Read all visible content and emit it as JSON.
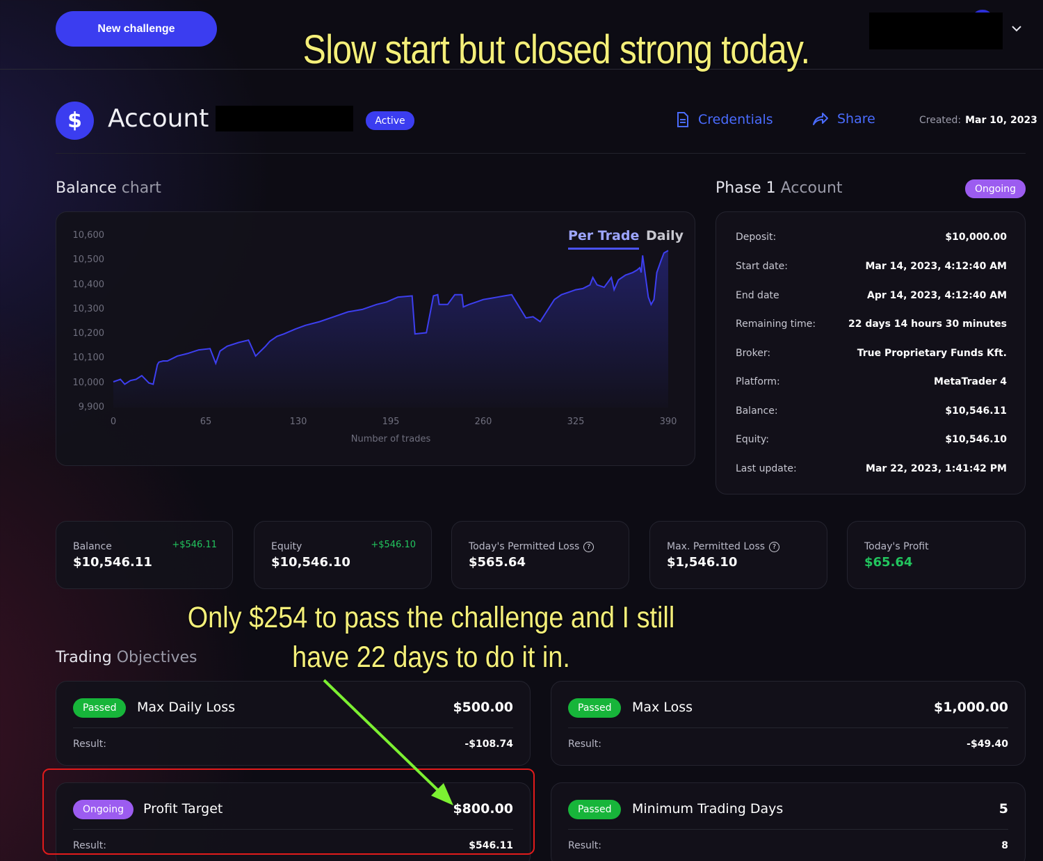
{
  "header": {
    "new_challenge_label": "New challenge"
  },
  "annotations": {
    "top_caption": "Slow start but closed strong today.",
    "middle_caption_line1": "Only $254 to pass the challenge and I still",
    "middle_caption_line2": "have 22 days to do it in.",
    "arrow_color": "#7cf032",
    "box_color": "#e21b1b"
  },
  "account": {
    "icon": "$",
    "title": "Account",
    "status": "Active",
    "credentials_label": "Credentials",
    "share_label": "Share",
    "created_label": "Created:",
    "created_value": "Mar 10, 2023"
  },
  "balance_chart": {
    "heading_strong": "Balance",
    "heading_rest": " chart",
    "tabs": [
      "Per Trade",
      "Daily"
    ],
    "active_tab": "Per Trade"
  },
  "chart_data": {
    "type": "area",
    "xlabel": "Number of trades",
    "ylabel": "",
    "xlim": [
      0,
      390
    ],
    "ylim": [
      9900,
      10600
    ],
    "x_ticks": [
      "0",
      "65",
      "130",
      "195",
      "260",
      "325",
      "390"
    ],
    "y_ticks": [
      "10,600",
      "10,500",
      "10,400",
      "10,300",
      "10,200",
      "10,100",
      "10,000",
      "9,900"
    ],
    "series": [
      {
        "color": "#3d3ff0",
        "x": [
          0,
          5,
          8,
          12,
          16,
          20,
          25,
          28,
          31,
          32,
          35,
          38,
          45,
          52,
          60,
          68,
          72,
          75,
          80,
          88,
          95,
          100,
          107,
          110,
          115,
          120,
          128,
          135,
          145,
          155,
          165,
          175,
          185,
          192,
          200,
          210,
          212,
          220,
          225,
          228,
          229,
          235,
          240,
          245,
          246,
          250,
          255,
          260,
          265,
          270,
          275,
          280,
          290,
          295,
          300,
          310,
          315,
          320,
          325,
          330,
          335,
          337,
          340,
          345,
          350,
          352,
          355,
          360,
          365,
          368,
          370,
          371,
          372,
          376,
          378,
          380,
          382,
          385,
          387,
          390
        ],
        "y": [
          10005,
          10015,
          9995,
          10010,
          10015,
          10030,
          10000,
          9995,
          10075,
          10085,
          10090,
          10090,
          10110,
          10120,
          10135,
          10140,
          10080,
          10130,
          10150,
          10165,
          10175,
          10110,
          10150,
          10170,
          10190,
          10200,
          10220,
          10235,
          10250,
          10270,
          10290,
          10300,
          10320,
          10330,
          10350,
          10355,
          10200,
          10205,
          10355,
          10360,
          10320,
          10320,
          10360,
          10360,
          10310,
          10320,
          10330,
          10340,
          10345,
          10350,
          10355,
          10360,
          10265,
          10270,
          10250,
          10340,
          10360,
          10370,
          10380,
          10385,
          10400,
          10430,
          10400,
          10390,
          10430,
          10380,
          10420,
          10440,
          10450,
          10460,
          10470,
          10450,
          10520,
          10350,
          10320,
          10340,
          10450,
          10500,
          10530,
          10540
        ]
      }
    ]
  },
  "phase": {
    "heading_strong": "Phase 1",
    "heading_rest": " Account",
    "status": "Ongoing",
    "rows": [
      {
        "k": "Deposit:",
        "v": "$10,000.00"
      },
      {
        "k": "Start date:",
        "v": "Mar 14, 2023, 4:12:40 AM"
      },
      {
        "k": "End date",
        "v": "Apr 14, 2023, 4:12:40 AM"
      },
      {
        "k": "Remaining time:",
        "v": "22 days 14 hours 30 minutes"
      },
      {
        "k": "Broker:",
        "v": "True Proprietary Funds Kft."
      },
      {
        "k": "Platform:",
        "v": "MetaTrader 4"
      },
      {
        "k": "Balance:",
        "v": "$10,546.11"
      },
      {
        "k": "Equity:",
        "v": "$10,546.10"
      },
      {
        "k": "Last update:",
        "v": "Mar 22, 2023, 1:41:42 PM"
      }
    ]
  },
  "stats": [
    {
      "label": "Balance",
      "value": "$10,546.11",
      "delta": "+$546.11"
    },
    {
      "label": "Equity",
      "value": "$10,546.10",
      "delta": "+$546.10"
    },
    {
      "label": "Today's Permitted Loss",
      "value": "$565.64",
      "help": "?"
    },
    {
      "label": "Max. Permitted Loss",
      "value": "$1,546.10",
      "help": "?"
    },
    {
      "label": "Today's Profit",
      "value": "$65.64",
      "value_color": "#22c55e"
    }
  ],
  "objectives": {
    "heading_strong": "Trading",
    "heading_rest": " Objectives",
    "items": [
      {
        "status": "Passed",
        "title": "Max Daily Loss",
        "amount": "$500.00",
        "result_label": "Result:",
        "result": "-$108.74"
      },
      {
        "status": "Passed",
        "title": "Max Loss",
        "amount": "$1,000.00",
        "result_label": "Result:",
        "result": "-$49.40"
      },
      {
        "status": "Ongoing",
        "title": "Profit Target",
        "amount": "$800.00",
        "result_label": "Result:",
        "result": "$546.11"
      },
      {
        "status": "Passed",
        "title": "Minimum Trading Days",
        "amount": "5",
        "result_label": "Result:",
        "result": "8"
      }
    ]
  }
}
